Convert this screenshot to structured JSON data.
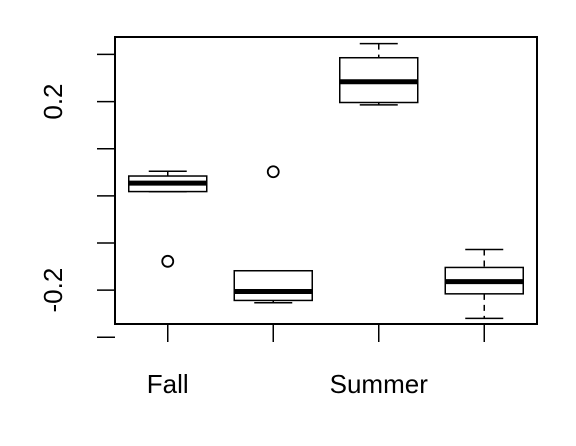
{
  "chart_data": {
    "type": "boxplot",
    "categories": [
      "Fall",
      "",
      "Summer",
      ""
    ],
    "y_tick_labels": [
      "-0.2",
      "0.2"
    ],
    "y_ticks": [
      -0.3,
      -0.2,
      -0.1,
      0.0,
      0.1,
      0.2,
      0.3
    ],
    "ylim": [
      -0.272,
      0.337
    ],
    "grid": false,
    "boxes": [
      {
        "category": "Fall",
        "whisker_low": 0.009,
        "q1": 0.009,
        "median": 0.027,
        "q3": 0.042,
        "whisker_high": 0.052,
        "outliers": [
          -0.139
        ]
      },
      {
        "category": "",
        "whisker_low": -0.227,
        "q1": -0.222,
        "median": -0.203,
        "q3": -0.159,
        "whisker_high": -0.159,
        "outliers": [
          0.051
        ]
      },
      {
        "category": "Summer",
        "whisker_low": 0.193,
        "q1": 0.198,
        "median": 0.242,
        "q3": 0.293,
        "whisker_high": 0.323,
        "outliers": []
      },
      {
        "category": "",
        "whisker_low": -0.26,
        "q1": -0.208,
        "median": -0.182,
        "q3": -0.152,
        "whisker_high": -0.114,
        "outliers": []
      }
    ]
  }
}
